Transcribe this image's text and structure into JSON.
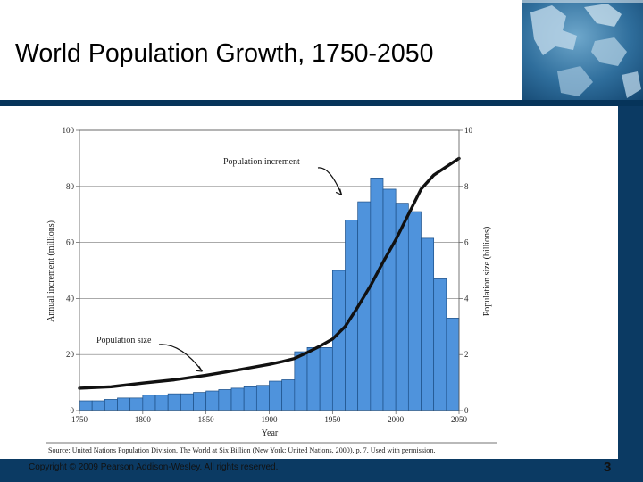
{
  "slide": {
    "title": "World Population Growth, 1750-2050",
    "copyright": "Copyright © 2009 Pearson Addison-Wesley. All rights reserved.",
    "slide_number": "3"
  },
  "colors": {
    "bar_fill": "#4f93dc",
    "bar_stroke": "#1d4f86",
    "curve": "#111111",
    "header_rule": "#06345a",
    "sidebar": "#0b3a63"
  },
  "chart_data": {
    "type": "bar",
    "title": "World Population Growth, 1750-2050",
    "xlabel": "Year",
    "ylabel": "Annual increment (millions)",
    "y2label": "Population size (billions)",
    "xlim": [
      1750,
      2050
    ],
    "ylim": [
      0,
      100
    ],
    "y2lim": [
      0,
      10
    ],
    "x_ticks": [
      "1750",
      "1800",
      "1850",
      "1900",
      "1950",
      "2000",
      "2050"
    ],
    "y_ticks": [
      "0",
      "20",
      "40",
      "60",
      "80",
      "100"
    ],
    "y2_ticks": [
      "0",
      "2",
      "4",
      "6",
      "8",
      "10"
    ],
    "bar_width_years": 10,
    "categories": [
      1750,
      1760,
      1770,
      1780,
      1790,
      1800,
      1810,
      1820,
      1830,
      1840,
      1850,
      1860,
      1870,
      1880,
      1890,
      1900,
      1910,
      1920,
      1930,
      1940,
      1950,
      1960,
      1970,
      1980,
      1990,
      2000,
      2010,
      2020,
      2030,
      2040
    ],
    "series": [
      {
        "name": "Population increment",
        "axis": "left",
        "values": [
          3.5,
          3.5,
          4,
          4.5,
          4.5,
          5.5,
          5.5,
          6,
          6,
          6.5,
          7,
          7.5,
          8,
          8.5,
          9,
          10.5,
          11,
          21,
          22.5,
          22.5,
          50,
          68,
          74.5,
          83,
          79,
          74,
          71,
          61.5,
          47,
          33
        ]
      },
      {
        "name": "Population size",
        "axis": "right",
        "x": [
          1750,
          1775,
          1800,
          1825,
          1850,
          1875,
          1900,
          1910,
          1920,
          1930,
          1940,
          1950,
          1960,
          1970,
          1980,
          1990,
          2000,
          2010,
          2020,
          2030,
          2040,
          2050
        ],
        "values": [
          0.8,
          0.85,
          0.98,
          1.1,
          1.26,
          1.45,
          1.65,
          1.75,
          1.86,
          2.07,
          2.3,
          2.55,
          3.0,
          3.7,
          4.45,
          5.3,
          6.1,
          7.0,
          7.9,
          8.4,
          8.7,
          9.0
        ]
      }
    ],
    "annotations": [
      {
        "label": "Population increment",
        "points_to_year": 1960,
        "points_to_value": 77
      },
      {
        "label": "Population size",
        "points_to_year": 1840,
        "points_to_value": 14
      }
    ],
    "source": "Source: United Nations Population Division, The World at Six Billion (New York: United Nations, 2000), p. 7. Used with permission."
  }
}
